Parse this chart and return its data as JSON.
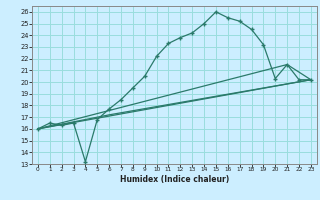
{
  "title": "",
  "xlabel": "Humidex (Indice chaleur)",
  "bg_color": "#cceeff",
  "grid_color": "#99dddd",
  "line_color": "#2a7a6a",
  "xlim": [
    -0.5,
    23.5
  ],
  "ylim": [
    13,
    26.5
  ],
  "xticks": [
    0,
    1,
    2,
    3,
    4,
    5,
    6,
    7,
    8,
    9,
    10,
    11,
    12,
    13,
    14,
    15,
    16,
    17,
    18,
    19,
    20,
    21,
    22,
    23
  ],
  "yticks": [
    13,
    14,
    15,
    16,
    17,
    18,
    19,
    20,
    21,
    22,
    23,
    24,
    25,
    26
  ],
  "line1_x": [
    0,
    1,
    2,
    3,
    4,
    5,
    6,
    7,
    8,
    9,
    10,
    11,
    12,
    13,
    14,
    15,
    16,
    17,
    18,
    19,
    20,
    21,
    22,
    23
  ],
  "line1_y": [
    16.0,
    16.5,
    16.3,
    16.5,
    13.2,
    16.8,
    17.7,
    18.5,
    19.5,
    20.5,
    22.2,
    23.3,
    23.8,
    24.2,
    25.0,
    26.0,
    25.5,
    25.2,
    24.5,
    23.2,
    20.3,
    21.5,
    20.2,
    20.2
  ],
  "line2_x": [
    0,
    23
  ],
  "line2_y": [
    16.0,
    20.2
  ],
  "line3_x": [
    0,
    21,
    23
  ],
  "line3_y": [
    16.0,
    21.5,
    20.2
  ],
  "line4_x": [
    0,
    6,
    23
  ],
  "line4_y": [
    16.0,
    17.2,
    20.2
  ],
  "marker": "+"
}
